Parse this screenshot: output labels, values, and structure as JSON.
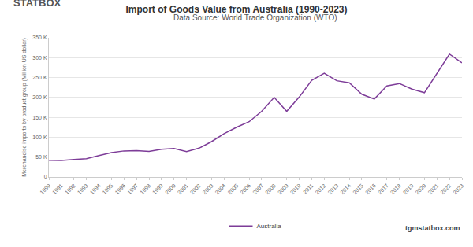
{
  "chart_data": {
    "type": "line",
    "title": "Import of Goods Value from Australia (1990-2023)",
    "subtitle": "Data Source: World Trade Organization (WTO)",
    "brand": "STATBOX",
    "source_url": "tgmstatbox.com",
    "y_label": "Merchandise imports by product group (Million US dollar)",
    "categories": [
      "1990",
      "1991",
      "1992",
      "1993",
      "1994",
      "1995",
      "1996",
      "1997",
      "1998",
      "1999",
      "2000",
      "2001",
      "2002",
      "2003",
      "2004",
      "2005",
      "2006",
      "2007",
      "2008",
      "2009",
      "2010",
      "2011",
      "2012",
      "2013",
      "2014",
      "2015",
      "2016",
      "2017",
      "2018",
      "2019",
      "2020",
      "2021",
      "2022",
      "2023"
    ],
    "series": [
      {
        "name": "Australia",
        "color": "#7d3c98",
        "values": [
          42000,
          41500,
          44000,
          46000,
          54000,
          61500,
          65500,
          66000,
          64500,
          69500,
          71500,
          64000,
          72500,
          89000,
          109000,
          125000,
          139000,
          165000,
          200000,
          165000,
          201000,
          243000,
          261000,
          242000,
          237000,
          208000,
          196000,
          229000,
          235000,
          221000,
          212000,
          260000,
          309000,
          287000
        ]
      }
    ],
    "ylim": [
      0,
      350000
    ],
    "yticks": [
      0,
      {
        "value": 50000,
        "label": "50 K"
      },
      {
        "value": 100000,
        "label": "100 K"
      },
      {
        "value": 150000,
        "label": "150 K"
      },
      {
        "value": 200000,
        "label": "200 K"
      },
      {
        "value": 250000,
        "label": "250 K"
      },
      {
        "value": 300000,
        "label": "300 K"
      },
      {
        "value": 350000,
        "label": "350 K"
      }
    ],
    "grid": true,
    "legend": "bottom"
  }
}
